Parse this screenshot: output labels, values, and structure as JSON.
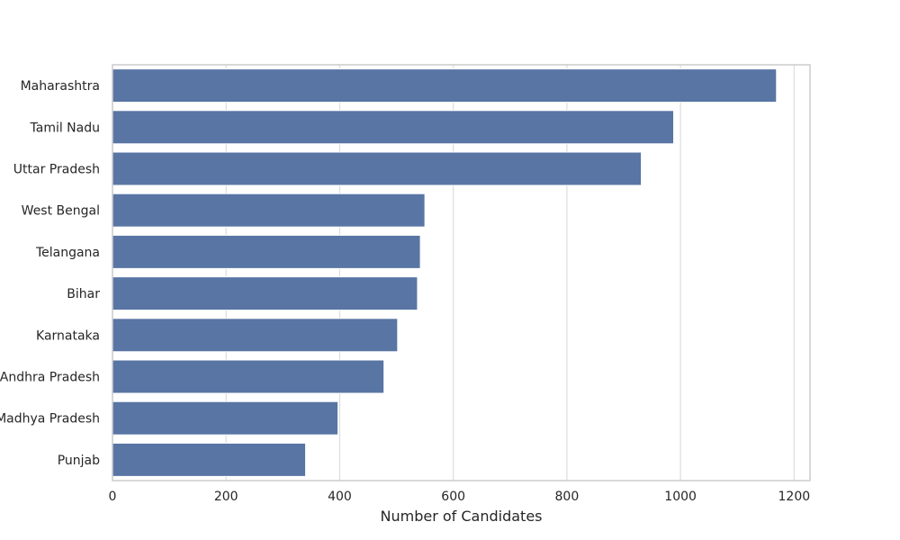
{
  "chart_data": {
    "type": "bar",
    "orientation": "horizontal",
    "title": "",
    "xlabel": "Number of Candidates",
    "ylabel": "",
    "categories": [
      "Maharashtra",
      "Tamil Nadu",
      "Uttar Pradesh",
      "West Bengal",
      "Telangana",
      "Bihar",
      "Karnataka",
      "Andhra Pradesh",
      "Madhya Pradesh",
      "Punjab"
    ],
    "values": [
      1169,
      988,
      931,
      550,
      542,
      537,
      502,
      478,
      397,
      340
    ],
    "xlim": [
      0,
      1228
    ],
    "xticks": [
      0,
      200,
      400,
      600,
      800,
      1000,
      1200
    ],
    "grid": true,
    "bar_color": "#5875a4"
  }
}
